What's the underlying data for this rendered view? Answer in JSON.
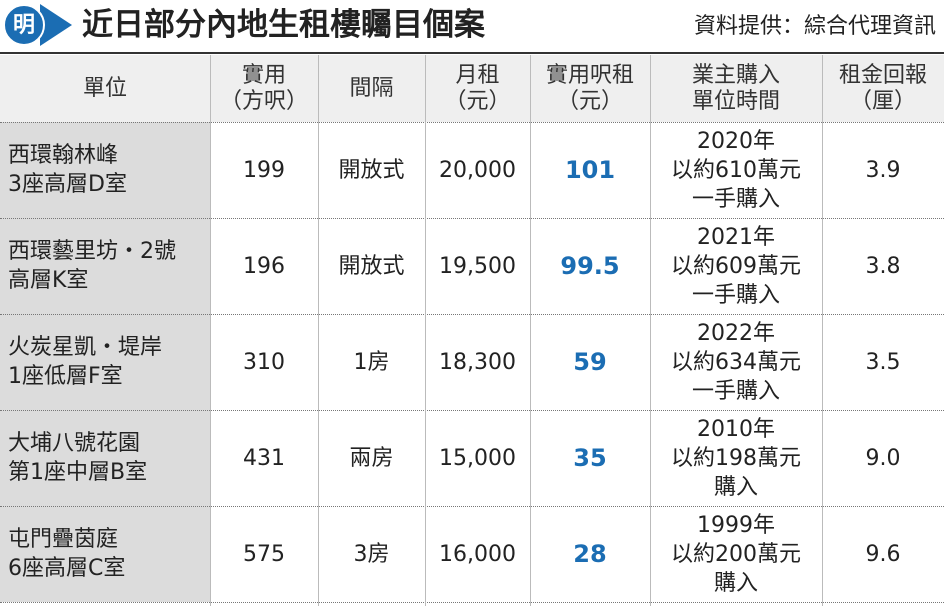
{
  "header": {
    "logo": "明",
    "title": "近日部分內地生租樓矚目個案",
    "source": "資料提供：綜合代理資訊"
  },
  "table": {
    "columns": [
      [
        "單位"
      ],
      [
        "實用",
        "（方呎）"
      ],
      [
        "間隔"
      ],
      [
        "月租",
        "（元）"
      ],
      [
        "實用呎租",
        "（元）"
      ],
      [
        "業主購入",
        "單位時間"
      ],
      [
        "租金回報",
        "（厘）"
      ]
    ],
    "rows": [
      [
        [
          "西環翰林峰",
          "3座高層D室"
        ],
        [
          "199"
        ],
        [
          "開放式"
        ],
        [
          "20,000"
        ],
        [
          "101"
        ],
        [
          "2020年",
          "以約610萬元",
          "一手購入"
        ],
        [
          "3.9"
        ]
      ],
      [
        [
          "西環藝里坊・2號",
          "高層K室"
        ],
        [
          "196"
        ],
        [
          "開放式"
        ],
        [
          "19,500"
        ],
        [
          "99.5"
        ],
        [
          "2021年",
          "以約609萬元",
          "一手購入"
        ],
        [
          "3.8"
        ]
      ],
      [
        [
          "火炭星凱・堤岸",
          "1座低層F室"
        ],
        [
          "310"
        ],
        [
          "1房"
        ],
        [
          "18,300"
        ],
        [
          "59"
        ],
        [
          "2022年",
          "以約634萬元",
          "一手購入"
        ],
        [
          "3.5"
        ]
      ],
      [
        [
          "大埔八號花園",
          "第1座中層B室"
        ],
        [
          "431"
        ],
        [
          "兩房"
        ],
        [
          "15,000"
        ],
        [
          "35"
        ],
        [
          "2010年",
          "以約198萬元",
          "購入"
        ],
        [
          "9.0"
        ]
      ],
      [
        [
          "屯門疊茵庭",
          "6座高層C室"
        ],
        [
          "575"
        ],
        [
          "3房"
        ],
        [
          "16,000"
        ],
        [
          "28"
        ],
        [
          "1999年",
          "以約200萬元",
          "購入"
        ],
        [
          "9.6"
        ]
      ]
    ]
  }
}
